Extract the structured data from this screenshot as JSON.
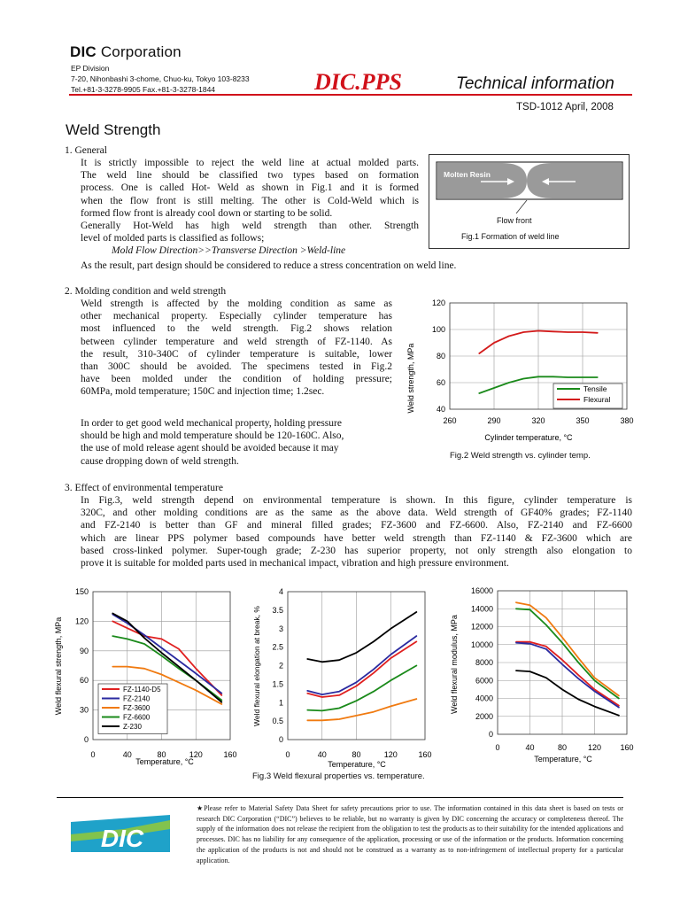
{
  "header": {
    "company_bold": "DIC",
    "company_rest": " Corporation",
    "division": "EP Division",
    "address": "7-20, Nihonbashi 3-chome, Chuo-ku, Tokyo 103-8233",
    "contact": "Tel.+81-3-3278-9905    Fax.+81-3-3278-1844",
    "brand": "DIC.PPS",
    "subtitle": "Technical information",
    "doc_ref": "TSD-1012 April, 2008",
    "brand_color": "#d1121b"
  },
  "title": "Weld Strength",
  "sections": {
    "general": {
      "heading": "1. General",
      "lines": [
        "It is strictly impossible to reject the weld line at actual molded parts.",
        "The weld line should be classified two types based on formation",
        "process. One is called Hot- Weld as shown in Fig.1 and it is formed",
        "when the flow front is still melting. The other is Cold-Weld which is",
        "formed flow front is already cool down or starting to be solid.",
        "Generally Hot-Weld has high weld strength than other.   Strength",
        "level of molded parts is classified as follows;"
      ],
      "order_line": "Mold Flow Direction>>Transverse Direction >Weld-line",
      "conclusion": "As the result, part design should be considered to reduce a stress concentration on weld line.",
      "fig1": {
        "label_resin": "Molten Resin",
        "label_front": "Flow front",
        "caption": "Fig.1 Formation of weld line"
      }
    },
    "molding": {
      "heading": "2. Molding condition and weld strength",
      "lines": [
        "Weld strength is affected by the molding condition as same as",
        "other mechanical property. Especially cylinder temperature has",
        "most influenced to the weld strength. Fig.2 shows relation",
        "between cylinder temperature and weld strength of FZ-1140. As",
        "the result, 310-340C of cylinder temperature is suitable, lower",
        "than 300C should be avoided. The specimens tested in Fig.2",
        "have been molded under the condition of holding pressure;",
        "60MPa, mold temperature; 150C and injection time; 1.2sec."
      ],
      "lines2": [
        "In order to get good weld mechanical property, holding pressure",
        "should be high and mold temperature should be 120-160C. Also,",
        "the use of mold release agent should be avoided because it may",
        "cause dropping down of weld strength."
      ],
      "fig2_caption": "Fig.2 Weld strength vs. cylinder temp."
    },
    "environment": {
      "heading": "3. Effect of environmental temperature",
      "lines": [
        "In Fig.3, weld strength depend on environmental temperature is shown. In this figure, cylinder temperature is",
        "320C, and other molding conditions are as the same as the above data. Weld strength of GF40% grades; FZ-1140",
        "and FZ-2140 is better than GF and mineral filled grades; FZ-3600 and FZ-6600. Also, FZ-2140 and FZ-6600",
        "which are linear PPS polymer based compounds have better weld strength than FZ-1140 & FZ-3600 which are",
        "based cross-linked polymer. Super-tough grade; Z-230 has superior property, not only strength also elongation to",
        "prove it is suitable for molded parts used in mechanical impact, vibration and high pressure environment."
      ],
      "fig3_caption": "Fig.3 Weld flexural properties vs. temperature."
    }
  },
  "chart_data": [
    {
      "id": "fig2",
      "type": "line",
      "xlabel": "Cylinder temperature, °C",
      "ylabel": "Weld strength, MPa",
      "xlim": [
        260,
        380
      ],
      "ylim": [
        40,
        120
      ],
      "xticks": [
        "260",
        "290",
        "320",
        "350",
        "380"
      ],
      "yticks": [
        "40",
        "60",
        "80",
        "100",
        "120"
      ],
      "legend_position": "bottom-right",
      "series": [
        {
          "name": "Tensile",
          "color": "#1a8a1a",
          "x": [
            280,
            290,
            300,
            310,
            320,
            330,
            340,
            350,
            360
          ],
          "y": [
            52,
            56,
            60,
            63,
            64.5,
            64.5,
            64,
            64,
            64
          ]
        },
        {
          "name": "Flexural",
          "color": "#d31a1a",
          "x": [
            280,
            290,
            300,
            310,
            320,
            330,
            340,
            350,
            360
          ],
          "y": [
            82,
            90,
            95,
            98,
            99,
            98.5,
            98,
            98,
            97.5
          ]
        }
      ]
    },
    {
      "id": "fig3a",
      "type": "line",
      "xlabel": "Temperature, °C",
      "ylabel": "Weld flexural strength, MPa",
      "xlim": [
        0,
        160
      ],
      "ylim": [
        0,
        150
      ],
      "xticks": [
        "0",
        "40",
        "80",
        "120",
        "160"
      ],
      "yticks": [
        "0",
        "30",
        "60",
        "90",
        "120",
        "150"
      ],
      "legend_position": "bottom-left",
      "series": [
        {
          "name": "FZ-1140-D5",
          "color": "#e02020",
          "x": [
            23,
            40,
            60,
            80,
            100,
            120,
            150
          ],
          "y": [
            120,
            113,
            105,
            102,
            92,
            72,
            45
          ]
        },
        {
          "name": "FZ-2140",
          "color": "#2a2aa0",
          "x": [
            23,
            40,
            60,
            80,
            100,
            120,
            150
          ],
          "y": [
            127,
            118,
            106,
            93,
            80,
            67,
            47
          ]
        },
        {
          "name": "FZ-3600",
          "color": "#f07a10",
          "x": [
            23,
            40,
            60,
            80,
            100,
            120,
            150
          ],
          "y": [
            74,
            74,
            72,
            66,
            58,
            50,
            36
          ]
        },
        {
          "name": "FZ-6600",
          "color": "#1a8a1a",
          "x": [
            23,
            40,
            60,
            80,
            100,
            120,
            150
          ],
          "y": [
            105,
            102,
            97,
            85,
            72,
            60,
            40
          ]
        },
        {
          "name": "Z-230",
          "color": "#000000",
          "x": [
            23,
            40,
            60,
            80,
            100,
            120,
            150
          ],
          "y": [
            128,
            120,
            103,
            88,
            74,
            60,
            38
          ]
        }
      ]
    },
    {
      "id": "fig3b",
      "type": "line",
      "xlabel": "Temperature, °C",
      "ylabel": "Weld flexural elongation at break, %",
      "xlim": [
        0,
        160
      ],
      "ylim": [
        0,
        4
      ],
      "xticks": [
        "0",
        "40",
        "80",
        "120",
        "160"
      ],
      "yticks": [
        "0",
        "0.5",
        "1",
        "1.5",
        "2",
        "2.5",
        "3",
        "3.5",
        "4"
      ],
      "series": [
        {
          "name": "FZ-1140-D5",
          "color": "#e02020",
          "x": [
            23,
            40,
            60,
            80,
            100,
            120,
            150
          ],
          "y": [
            1.25,
            1.15,
            1.2,
            1.45,
            1.8,
            2.2,
            2.65
          ]
        },
        {
          "name": "FZ-2140",
          "color": "#2a2aa0",
          "x": [
            23,
            40,
            60,
            80,
            100,
            120,
            150
          ],
          "y": [
            1.32,
            1.22,
            1.3,
            1.55,
            1.9,
            2.3,
            2.8
          ]
        },
        {
          "name": "FZ-3600",
          "color": "#f07a10",
          "x": [
            23,
            40,
            60,
            80,
            100,
            120,
            150
          ],
          "y": [
            0.52,
            0.52,
            0.55,
            0.65,
            0.75,
            0.9,
            1.1
          ]
        },
        {
          "name": "FZ-6600",
          "color": "#1a8a1a",
          "x": [
            23,
            40,
            60,
            80,
            100,
            120,
            150
          ],
          "y": [
            0.8,
            0.78,
            0.85,
            1.05,
            1.3,
            1.6,
            2.0
          ]
        },
        {
          "name": "Z-230",
          "color": "#000000",
          "x": [
            23,
            40,
            60,
            80,
            100,
            120,
            150
          ],
          "y": [
            2.18,
            2.1,
            2.15,
            2.35,
            2.65,
            3.0,
            3.45
          ]
        }
      ]
    },
    {
      "id": "fig3c",
      "type": "line",
      "xlabel": "Temperature, °C",
      "ylabel": "Weld flexural modulus, MPa",
      "xlim": [
        0,
        160
      ],
      "ylim": [
        0,
        16000
      ],
      "xticks": [
        "0",
        "40",
        "80",
        "120",
        "160"
      ],
      "yticks": [
        "0",
        "2000",
        "4000",
        "6000",
        "8000",
        "10000",
        "12000",
        "14000",
        "16000"
      ],
      "series": [
        {
          "name": "FZ-1140-D5",
          "color": "#e02020",
          "x": [
            23,
            40,
            60,
            80,
            100,
            120,
            150
          ],
          "y": [
            10300,
            10300,
            9800,
            8300,
            6600,
            5000,
            3200
          ]
        },
        {
          "name": "FZ-2140",
          "color": "#2a2aa0",
          "x": [
            23,
            40,
            60,
            80,
            100,
            120,
            150
          ],
          "y": [
            10200,
            10100,
            9500,
            7800,
            6200,
            4800,
            3000
          ]
        },
        {
          "name": "FZ-3600",
          "color": "#f07a10",
          "x": [
            23,
            40,
            60,
            80,
            100,
            120,
            150
          ],
          "y": [
            14700,
            14400,
            13000,
            10800,
            8500,
            6300,
            4300
          ]
        },
        {
          "name": "FZ-6600",
          "color": "#1a8a1a",
          "x": [
            23,
            40,
            60,
            80,
            100,
            120,
            150
          ],
          "y": [
            14000,
            13900,
            12200,
            10200,
            8000,
            6000,
            4000
          ]
        },
        {
          "name": "Z-230",
          "color": "#000000",
          "x": [
            23,
            40,
            60,
            80,
            100,
            120,
            150
          ],
          "y": [
            7100,
            7000,
            6300,
            5000,
            3900,
            3100,
            2100
          ]
        }
      ]
    }
  ],
  "footer": {
    "logo_text": "DIC",
    "disclaimer": "★Please refer to Material Safety Data Sheet for safety precautions prior to use. The information contained in this data sheet is based on tests or research DIC Corporation (“DIC”) believes to be reliable, but no warranty is given by DIC concerning the accuracy or completeness thereof. The supply of the information does not release the recipient from the obligation to test the products as to their suitability for the intended applications and processes. DIC has no liability for any consequence of the application, processing or use of the information or the products. Information concerning the application of the products is not and should not be construed as a warranty as to non-infringement of intellectual property for a particular application."
  }
}
